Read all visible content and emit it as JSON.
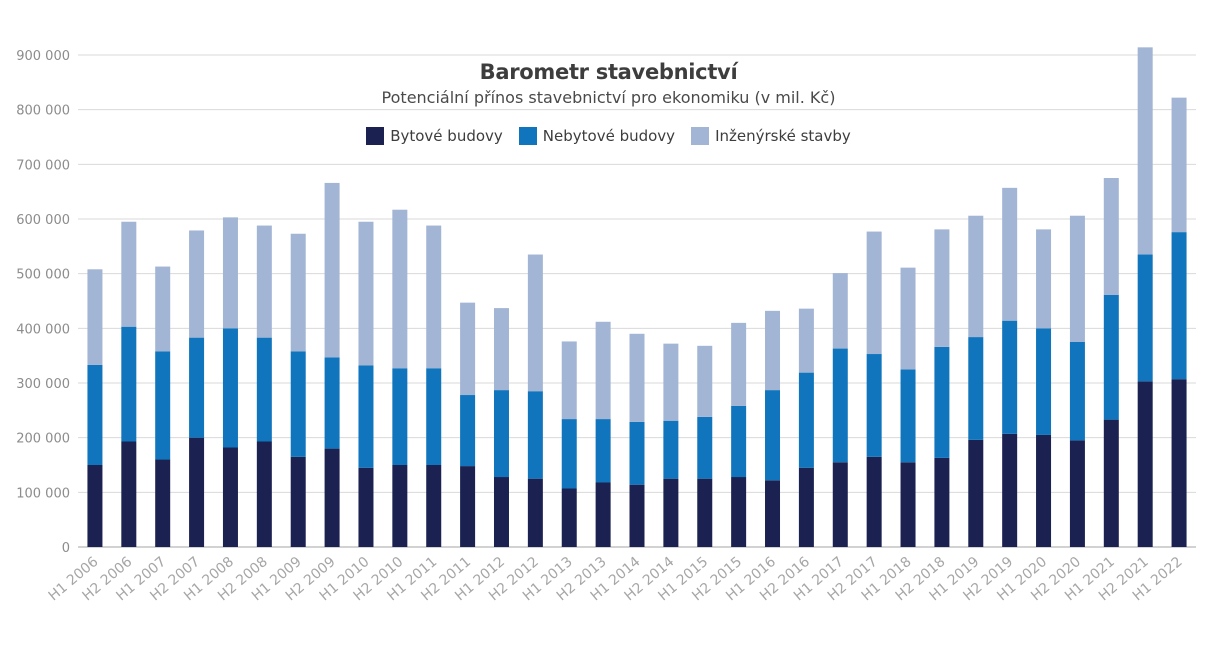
{
  "chart_data": {
    "type": "bar",
    "stacked": true,
    "title": "Barometr stavebnictví",
    "subtitle": "Potenciální přínos stavebnictví pro ekonomiku (v mil. Kč)",
    "xlabel": "",
    "ylabel": "",
    "ylim": [
      0,
      900000
    ],
    "yticks": [
      0,
      100000,
      200000,
      300000,
      400000,
      500000,
      600000,
      700000,
      800000,
      900000
    ],
    "ytick_labels": [
      "0",
      "100 000",
      "200 000",
      "300 000",
      "400 000",
      "500 000",
      "600 000",
      "700 000",
      "800 000",
      "900 000"
    ],
    "grid": true,
    "legend_position": "top-center",
    "categories": [
      "H1 2006",
      "H2 2006",
      "H1 2007",
      "H2 2007",
      "H1 2008",
      "H2 2008",
      "H1 2009",
      "H2 2009",
      "H1 2010",
      "H2 2010",
      "H1 2011",
      "H2 2011",
      "H1 2012",
      "H2 2012",
      "H1 2013",
      "H2 2013",
      "H1 2014",
      "H2 2014",
      "H1 2015",
      "H2 2015",
      "H1 2016",
      "H2 2016",
      "H1 2017",
      "H2 2017",
      "H1 2018",
      "H2 2018",
      "H1 2019",
      "H2 2019",
      "H1 2020",
      "H2 2020",
      "H1 2021",
      "H2 2021",
      "H1 2022"
    ],
    "series": [
      {
        "name": "Bytové budovy",
        "color": "#1b2150",
        "values": [
          150000,
          193000,
          160000,
          200000,
          182000,
          193000,
          165000,
          180000,
          145000,
          150000,
          150000,
          148000,
          128000,
          125000,
          107000,
          118000,
          114000,
          125000,
          125000,
          128000,
          122000,
          145000,
          155000,
          165000,
          155000,
          163000,
          196000,
          207000,
          205000,
          195000,
          233000,
          303000,
          307000
        ]
      },
      {
        "name": "Nebytové budovy",
        "color": "#1075bd",
        "values": [
          183000,
          210000,
          198000,
          183000,
          218000,
          190000,
          193000,
          167000,
          187000,
          177000,
          177000,
          130000,
          159000,
          160000,
          127000,
          116000,
          115000,
          106000,
          113000,
          130000,
          165000,
          174000,
          208000,
          188000,
          170000,
          203000,
          188000,
          207000,
          195000,
          180000,
          228000,
          232000,
          269000
        ]
      },
      {
        "name": "Inženýrské stavby",
        "color": "#a2b5d4",
        "values": [
          175000,
          192000,
          155000,
          196000,
          203000,
          205000,
          215000,
          319000,
          263000,
          290000,
          261000,
          169000,
          150000,
          250000,
          142000,
          178000,
          161000,
          141000,
          130000,
          152000,
          145000,
          117000,
          138000,
          224000,
          186000,
          215000,
          222000,
          243000,
          181000,
          231000,
          214000,
          379000,
          246000
        ]
      }
    ]
  }
}
